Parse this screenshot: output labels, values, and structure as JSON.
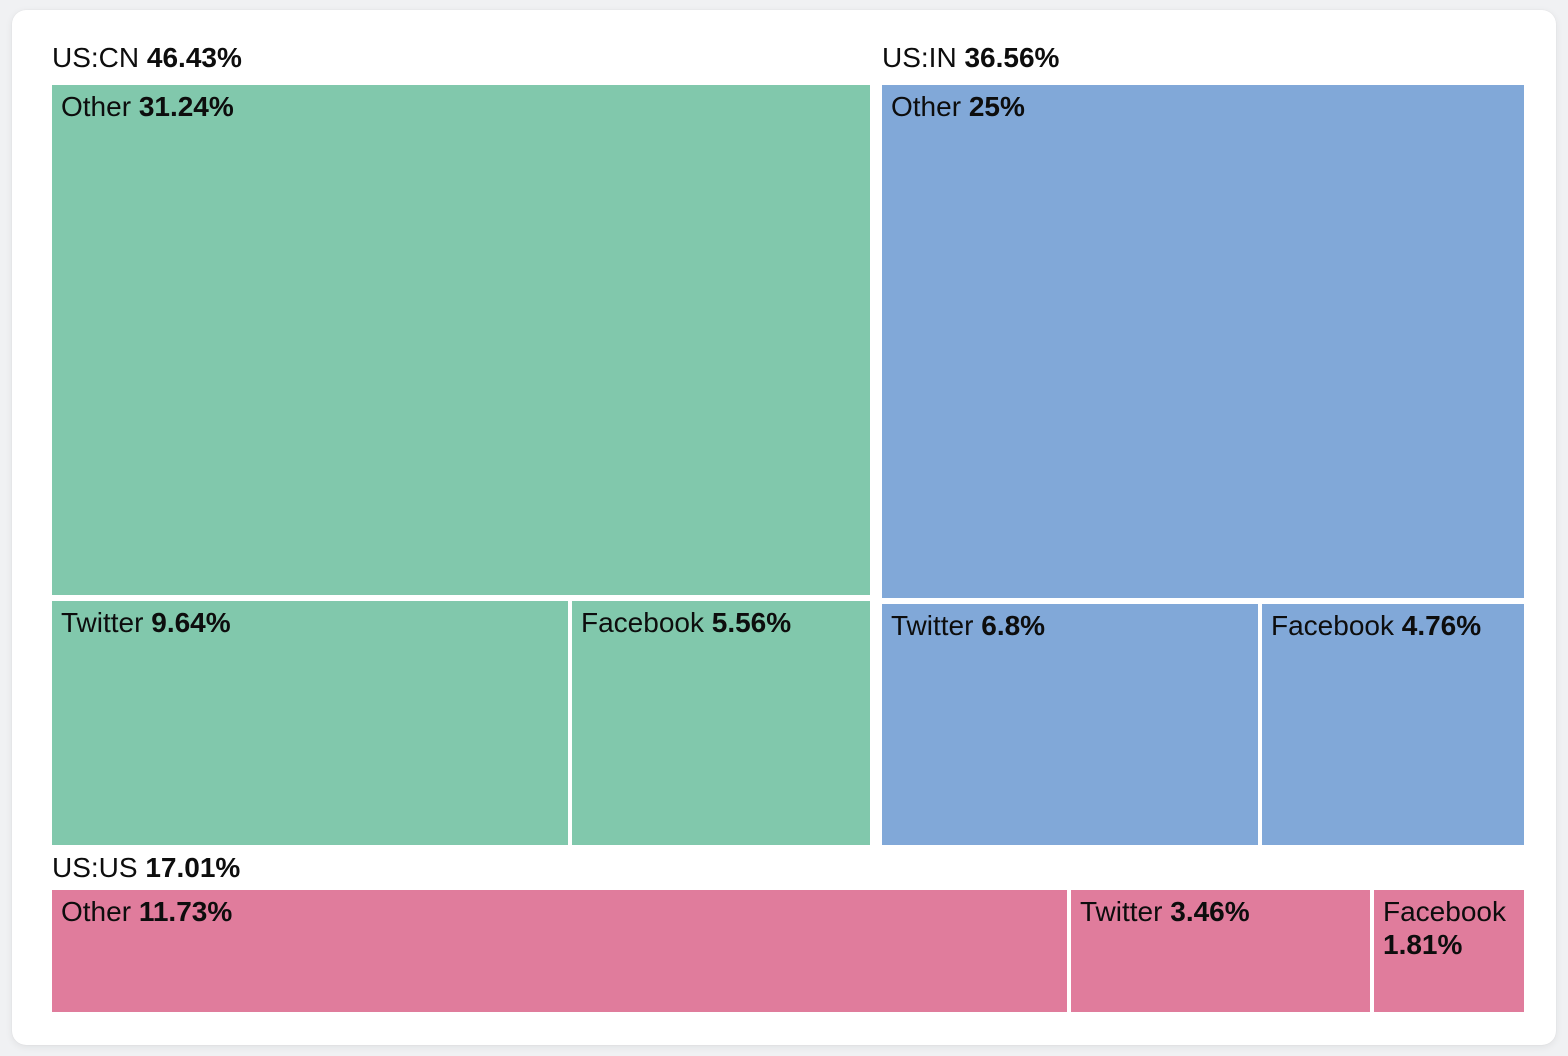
{
  "page": {
    "background_color": "#f0f1f3",
    "card_background_color": "#ffffff"
  },
  "chart_data": {
    "type": "treemap",
    "title": "",
    "legend": "none",
    "label_format": "name + bold percent, top-left of each tile; group label above group",
    "groups": [
      {
        "name": "US:CN",
        "display_value": "46.43%",
        "value": 46.43,
        "color": "#81c8ac",
        "children": [
          {
            "name": "Other",
            "display_value": "31.24%",
            "value": 31.24
          },
          {
            "name": "Twitter",
            "display_value": "9.64%",
            "value": 9.64
          },
          {
            "name": "Facebook",
            "display_value": "5.56%",
            "value": 5.56
          }
        ]
      },
      {
        "name": "US:IN",
        "display_value": "36.56%",
        "value": 36.56,
        "color": "#81a8d8",
        "children": [
          {
            "name": "Other",
            "display_value": "25%",
            "value": 25
          },
          {
            "name": "Twitter",
            "display_value": "6.8%",
            "value": 6.8
          },
          {
            "name": "Facebook",
            "display_value": "4.76%",
            "value": 4.76
          }
        ]
      },
      {
        "name": "US:US",
        "display_value": "17.01%",
        "value": 17.01,
        "color": "#e07c9c",
        "children": [
          {
            "name": "Other",
            "display_value": "11.73%",
            "value": 11.73
          },
          {
            "name": "Twitter",
            "display_value": "3.46%",
            "value": 3.46
          },
          {
            "name": "Facebook",
            "display_value": "1.81%",
            "value": 1.81
          }
        ]
      }
    ]
  }
}
